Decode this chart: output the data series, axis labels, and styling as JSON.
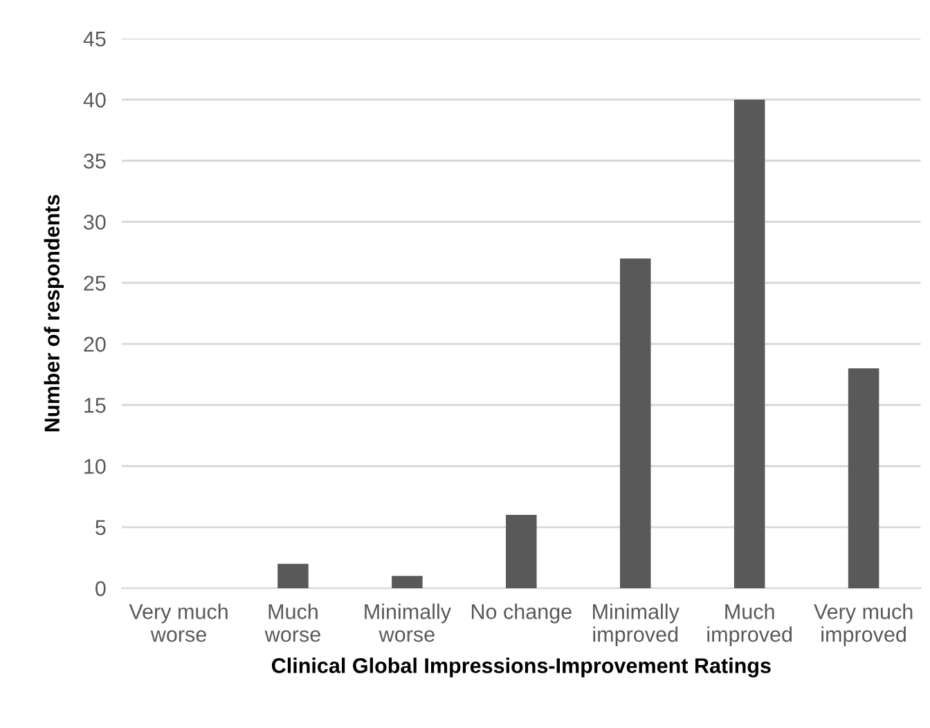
{
  "chart_data": {
    "type": "bar",
    "categories": [
      "Very much\nworse",
      "Much\nworse",
      "Minimally\nworse",
      "No change",
      "Minimally\nimproved",
      "Much\nimproved",
      "Very much\nimproved"
    ],
    "values": [
      0,
      2,
      1,
      6,
      27,
      40,
      18
    ],
    "color": "#595959",
    "xlabel": "Clinical Global Impressions-Improvement Ratings",
    "ylabel": "Number of respondents",
    "ylim": [
      0,
      45
    ],
    "yticks": [
      0,
      5,
      10,
      15,
      20,
      25,
      30,
      35,
      40,
      45
    ],
    "grid": "y",
    "legend": false
  }
}
